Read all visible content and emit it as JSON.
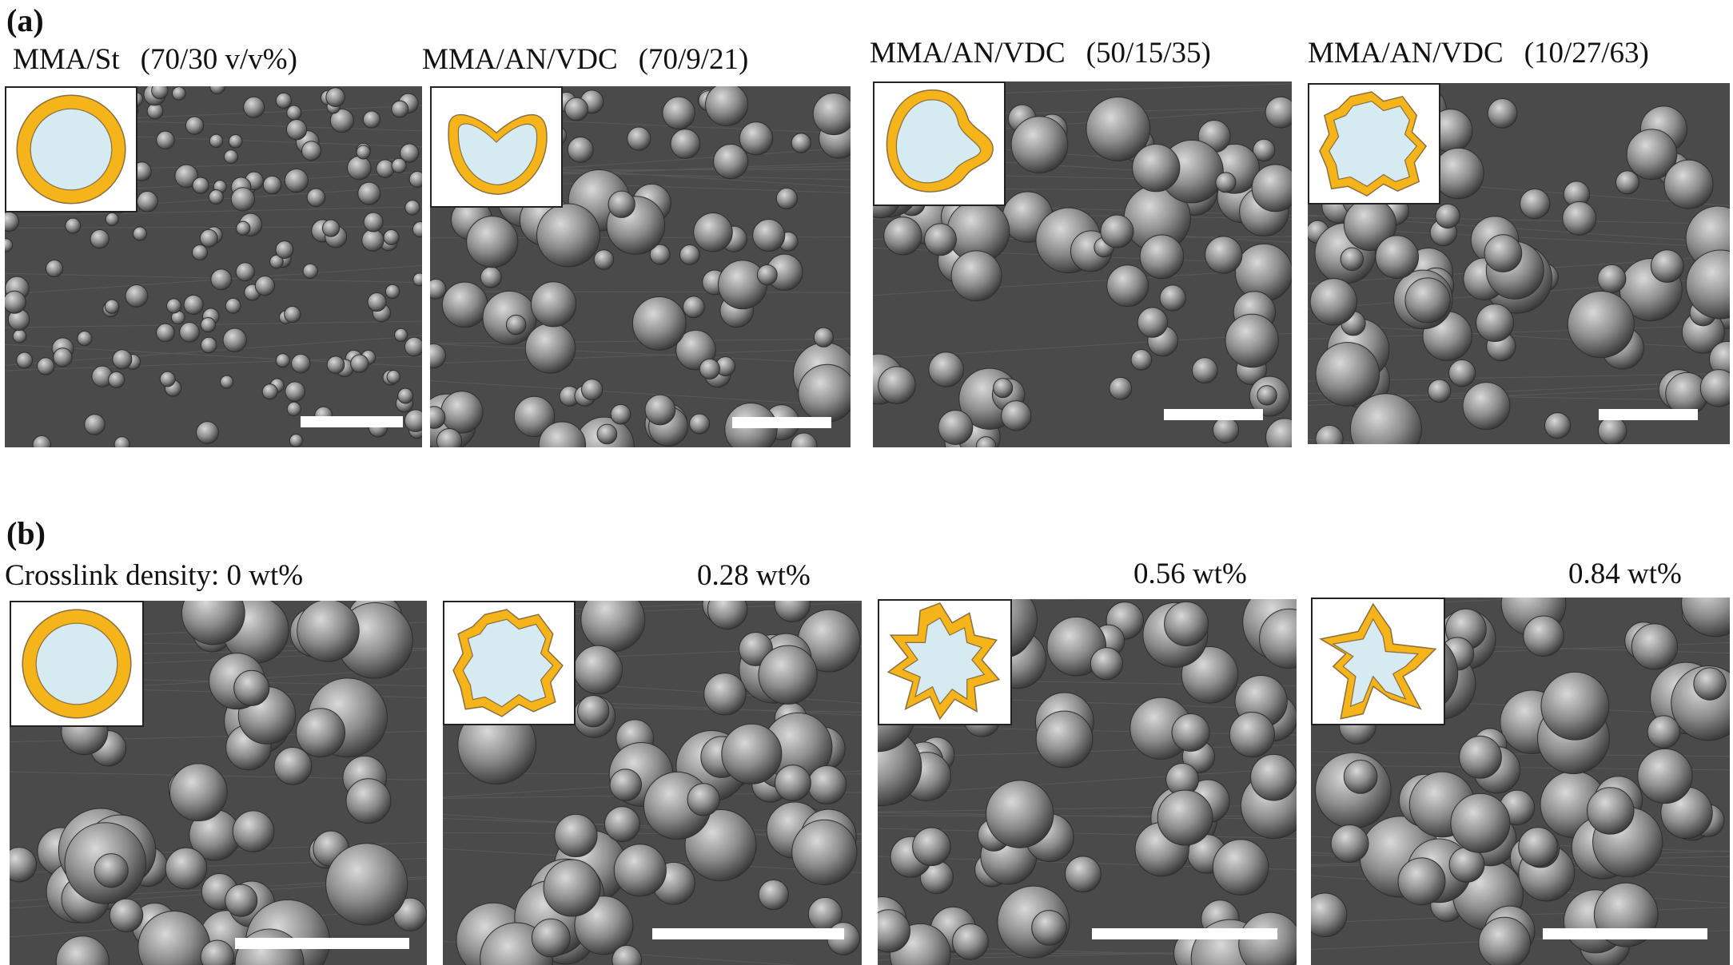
{
  "colors": {
    "shell": "#f5b41a",
    "shell_stroke": "#8a7040",
    "core": "#d6eaf2",
    "sem_background": "#4a4a4a",
    "particle": "#8c8c8c",
    "scale_bar": "#ffffff"
  },
  "panel_a": {
    "label": "(a)",
    "images": [
      {
        "composition": "MMA/St",
        "ratio": "(70/30  v/v%)",
        "shell_shape": "circle"
      },
      {
        "composition": "MMA/AN/VDC",
        "ratio": "(70/9/21)",
        "shell_shape": "kidney"
      },
      {
        "composition": "MMA/AN/VDC",
        "ratio": "(50/15/35)",
        "shell_shape": "lobed"
      },
      {
        "composition": "MMA/AN/VDC",
        "ratio": "(10/27/63)",
        "shell_shape": "crumpled"
      }
    ]
  },
  "panel_b": {
    "label": "(b)",
    "caption_prefix": "Crosslink density:",
    "images": [
      {
        "density": "0 wt%",
        "shell_shape": "circle"
      },
      {
        "density": "0.28 wt%",
        "shell_shape": "crumpled"
      },
      {
        "density": "0.56 wt%",
        "shell_shape": "spiky"
      },
      {
        "density": "0.84 wt%",
        "shell_shape": "star"
      }
    ]
  }
}
